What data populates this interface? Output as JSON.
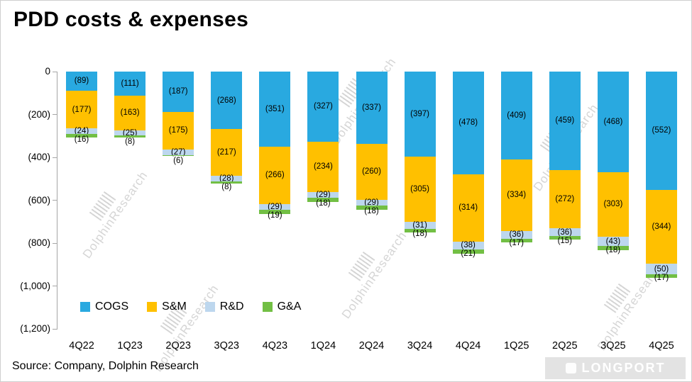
{
  "title": "PDD costs & expenses",
  "source": "Source: Company,  Dolphin Research",
  "watermark_text": "DolphinResearch",
  "logo_text": "LONGPORT",
  "chart_data": {
    "type": "bar",
    "stacked": true,
    "direction": "negative-down",
    "title": "PDD costs & expenses",
    "categories": [
      "4Q22",
      "1Q23",
      "2Q23",
      "3Q23",
      "4Q23",
      "1Q24",
      "2Q24",
      "3Q24",
      "4Q24",
      "1Q25",
      "2Q25",
      "3Q25",
      "4Q25"
    ],
    "series": [
      {
        "name": "COGS",
        "color": "#29A9E0",
        "values": [
          89,
          111,
          187,
          268,
          351,
          327,
          337,
          397,
          478,
          409,
          459,
          468,
          552
        ]
      },
      {
        "name": "S&M",
        "color": "#FFC000",
        "values": [
          177,
          163,
          175,
          217,
          266,
          234,
          260,
          305,
          314,
          334,
          272,
          303,
          344
        ]
      },
      {
        "name": "R&D",
        "color": "#BDD7EE",
        "values": [
          24,
          25,
          27,
          28,
          29,
          29,
          29,
          31,
          38,
          36,
          36,
          43,
          50
        ]
      },
      {
        "name": "G&A",
        "color": "#72BF44",
        "values": [
          16,
          8,
          6,
          8,
          19,
          18,
          18,
          18,
          21,
          17,
          15,
          18,
          17
        ]
      }
    ],
    "label_format": "parentheses-negative",
    "y_ticks": [
      "0",
      "(200)",
      "(400)",
      "(600)",
      "(800)",
      "(1,000)",
      "(1,200)"
    ],
    "ylim": [
      -1200,
      0
    ],
    "grid": false,
    "legend_position": "inside-bottom-left"
  }
}
